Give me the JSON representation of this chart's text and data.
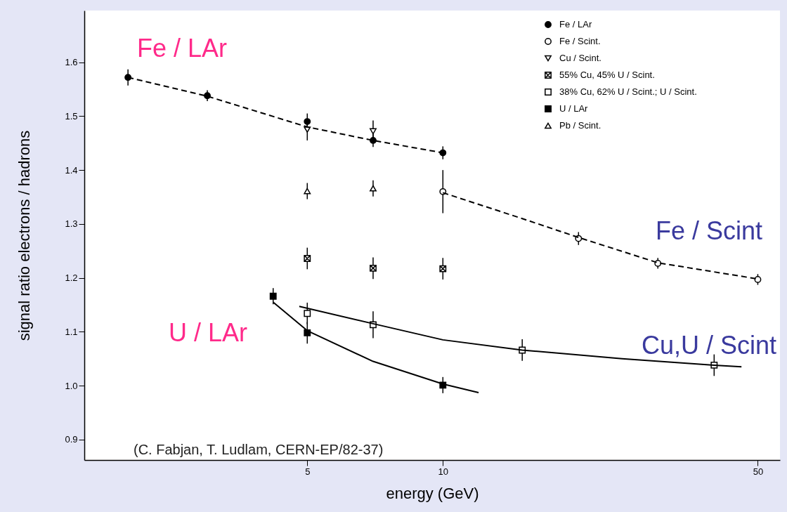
{
  "chart_data": {
    "type": "scatter",
    "xlabel": "energy (GeV)",
    "ylabel": "signal ratio  electrons / hadrons",
    "log": "x",
    "xlim": [
      1.6,
      56
    ],
    "xticks": [
      5,
      10,
      50
    ],
    "ylim": [
      0.862,
      1.696
    ],
    "yticks": [
      0.9,
      {
        "value": 1,
        "label": "1.0"
      },
      1.1,
      1.2,
      1.3,
      1.4,
      1.5,
      1.6
    ],
    "grid": false,
    "legend": "top right",
    "series": [
      {
        "name": "Fe / LAr",
        "marker": "circle",
        "color": "#000000",
        "x": [
          2,
          3,
          5,
          7,
          10
        ],
        "values": [
          1.572,
          1.538,
          1.49,
          1.455,
          1.432
        ],
        "errors": [
          0.015,
          0.01,
          0.015,
          0.012,
          0.012
        ]
      },
      {
        "name": "Fe / Scint.",
        "marker": "circle",
        "color": "#ffffff",
        "x": [
          10,
          20,
          30,
          50
        ],
        "values": [
          1.36,
          1.273,
          1.227,
          1.197
        ],
        "errors": [
          0.04,
          0.012,
          0.01,
          0.01
        ]
      },
      {
        "name": "Cu / Scint.",
        "marker": "triangle-down",
        "color": "#ffffff",
        "x": [
          5,
          7
        ],
        "values": [
          1.475,
          1.472
        ],
        "errors": [
          0.02,
          0.02
        ]
      },
      {
        "name": "55% Cu, 45% U / Scint.",
        "marker": "cross",
        "color": "#ffffff",
        "x": [
          5,
          7,
          10
        ],
        "values": [
          1.236,
          1.218,
          1.217
        ],
        "errors": [
          0.02,
          0.02,
          0.02
        ]
      },
      {
        "name": "38% Cu, 62% U / Scint.; U / Scint.",
        "marker": "square",
        "color": "#ffffff",
        "x": [
          5,
          7,
          15,
          40
        ],
        "values": [
          1.134,
          1.113,
          1.066,
          1.038
        ],
        "errors": [
          0.02,
          0.025,
          0.02,
          0.02
        ]
      },
      {
        "name": "U / LAr",
        "marker": "square",
        "color": "#000000",
        "x": [
          4.2,
          5,
          10
        ],
        "values": [
          1.166,
          1.098,
          1.001
        ],
        "errors": [
          0.015,
          0.02,
          0.015
        ]
      },
      {
        "name": "Pb / Scint.",
        "marker": "triangle",
        "color": "#ffffff",
        "x": [
          5,
          7
        ],
        "values": [
          1.361,
          1.366
        ],
        "errors": [
          0.015,
          0.015
        ]
      },
      {
        "type": "line",
        "line_style": "dashed",
        "color": "#000000",
        "x": [
          2,
          3,
          5,
          7,
          10
        ],
        "values": [
          1.572,
          1.537,
          1.48,
          1.455,
          1.432
        ]
      },
      {
        "type": "line",
        "line_style": "dashed",
        "color": "#000000",
        "x": [
          10,
          15,
          20,
          30,
          50
        ],
        "values": [
          1.358,
          1.31,
          1.275,
          1.228,
          1.198
        ]
      },
      {
        "type": "line",
        "line_style": "solid",
        "color": "#000000",
        "x": [
          4.8,
          7,
          10,
          15,
          25,
          40,
          46
        ],
        "values": [
          1.147,
          1.115,
          1.085,
          1.066,
          1.05,
          1.038,
          1.035
        ]
      },
      {
        "type": "line",
        "line_style": "solid",
        "color": "#000000",
        "x": [
          4.2,
          5,
          7,
          10,
          12
        ],
        "values": [
          1.155,
          1.102,
          1.045,
          1.003,
          0.987
        ]
      }
    ],
    "annotations": [
      "Fe / LAr",
      "Fe / Scint",
      "U / LAr",
      "Cu,U / Scint",
      "(C. Fabjan, T. Ludlam, CERN-EP/82-37)"
    ]
  }
}
